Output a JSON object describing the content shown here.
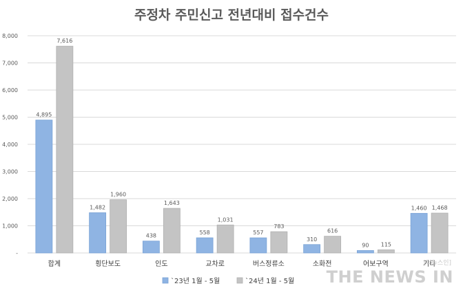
{
  "chart_data": {
    "type": "bar",
    "title": "주정차 주민신고 전년대비 접수건수",
    "categories": [
      "합계",
      "횡단보도",
      "인도",
      "교차로",
      "버스정류소",
      "소화전",
      "어보구역",
      "기타"
    ],
    "series": [
      {
        "name": "`23년 1월 - 5월",
        "values": [
          4895,
          1482,
          438,
          558,
          557,
          310,
          90,
          1460
        ],
        "labels": [
          "4,895",
          "1,482",
          "438",
          "558",
          "557",
          "310",
          "90",
          "1,460"
        ],
        "color": "#8fb4e3"
      },
      {
        "name": "`24년 1월 - 5월",
        "values": [
          7616,
          1960,
          1643,
          1031,
          783,
          616,
          115,
          1468
        ],
        "labels": [
          "7,616",
          "1,960",
          "1,643",
          "1,031",
          "783",
          "616",
          "115",
          "1,468"
        ],
        "color": "#c4c4c4"
      }
    ],
    "ylim": [
      0,
      8000
    ],
    "yticks": [
      0,
      1000,
      2000,
      3000,
      4000,
      5000,
      6000,
      7000,
      8000
    ],
    "ytick_labels": [
      "-",
      "1,000",
      "2,000",
      "3,000",
      "4,000",
      "5,000",
      "6,000",
      "7,000",
      "8,000"
    ],
    "grid": true,
    "legend_position": "bottom"
  },
  "watermark": {
    "text": "THE NEWS IN",
    "sub": "[더뉴스인]"
  }
}
